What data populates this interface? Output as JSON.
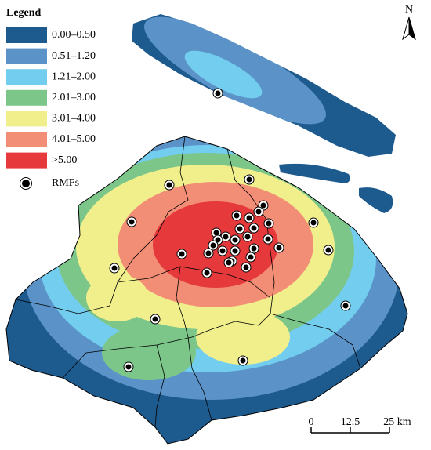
{
  "legend": {
    "title": "Legend",
    "items": [
      {
        "label": "0.00–0.50",
        "color": "#1d5a8e"
      },
      {
        "label": "0.51–1.20",
        "color": "#5b93c8"
      },
      {
        "label": "1.21–2.00",
        "color": "#72cdef"
      },
      {
        "label": "2.01–3.00",
        "color": "#7cc68a"
      },
      {
        "label": "3.01–4.00",
        "color": "#f1ef8c"
      },
      {
        "label": "4.01–5.00",
        "color": "#f28d76"
      },
      {
        "label": ">5.00",
        "color": "#e5393c"
      }
    ],
    "marker_label": "RMFs"
  },
  "north_label": "N",
  "scale_bar": {
    "labels": [
      "0",
      "12.5",
      "25 km"
    ]
  }
}
